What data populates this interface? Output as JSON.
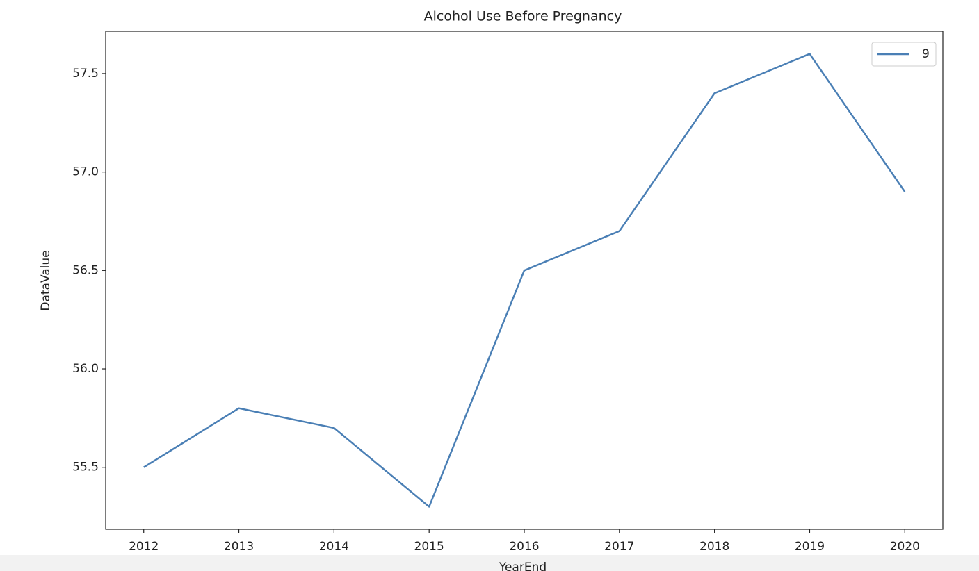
{
  "chart_data": {
    "type": "line",
    "title": "Alcohol Use Before Pregnancy",
    "x_label": "YearEnd",
    "y_label": "DataValue",
    "x": [
      2012,
      2013,
      2014,
      2015,
      2016,
      2017,
      2018,
      2019,
      2020
    ],
    "series": [
      {
        "name": "9",
        "color": "#4a7fb5",
        "values": [
          55.5,
          55.8,
          55.7,
          55.3,
          56.5,
          56.7,
          57.4,
          57.6,
          56.9
        ]
      }
    ],
    "xlim": [
      2011.6,
      2020.4
    ],
    "xticks": [
      2012,
      2013,
      2014,
      2015,
      2016,
      2017,
      2018,
      2019,
      2020
    ],
    "ylim": [
      55.185,
      57.715
    ],
    "yticks": [
      55.5,
      {
        "value": 56,
        "label": "56.0"
      },
      56.5,
      {
        "value": 57,
        "label": "57.0"
      },
      57.5
    ],
    "legend": "upper right",
    "grid": false
  }
}
